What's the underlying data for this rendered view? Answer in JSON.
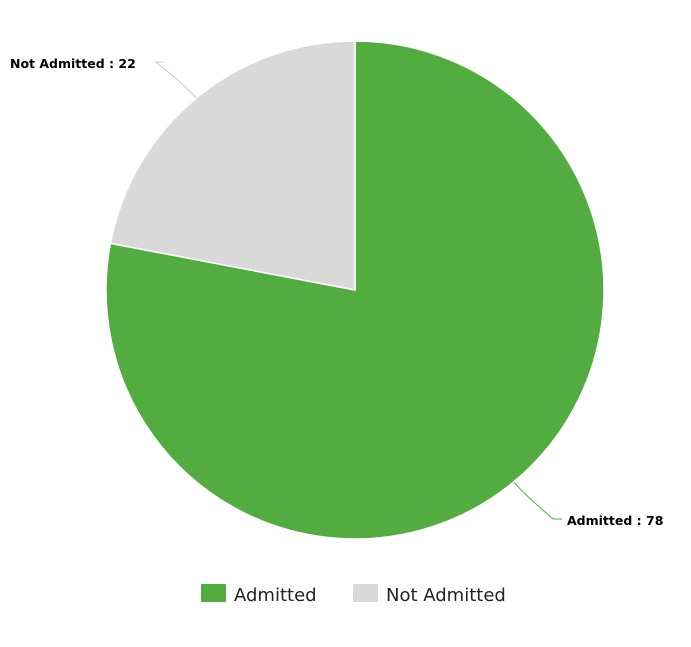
{
  "chart_data": {
    "type": "pie",
    "start_angle_deg": 0,
    "direction": "clockwise",
    "legend_position": "bottom-center",
    "slices": [
      {
        "name": "Admitted",
        "value": 78,
        "color": "#52ac3f",
        "label": "Admitted : 78"
      },
      {
        "name": "Not Admitted",
        "value": 22,
        "color": "#d9d9d9",
        "label": "Not Admitted : 22"
      }
    ],
    "legend": [
      {
        "label": "Admitted",
        "color": "#52ac3f"
      },
      {
        "label": "Not Admitted",
        "color": "#d9d9d9"
      }
    ]
  }
}
